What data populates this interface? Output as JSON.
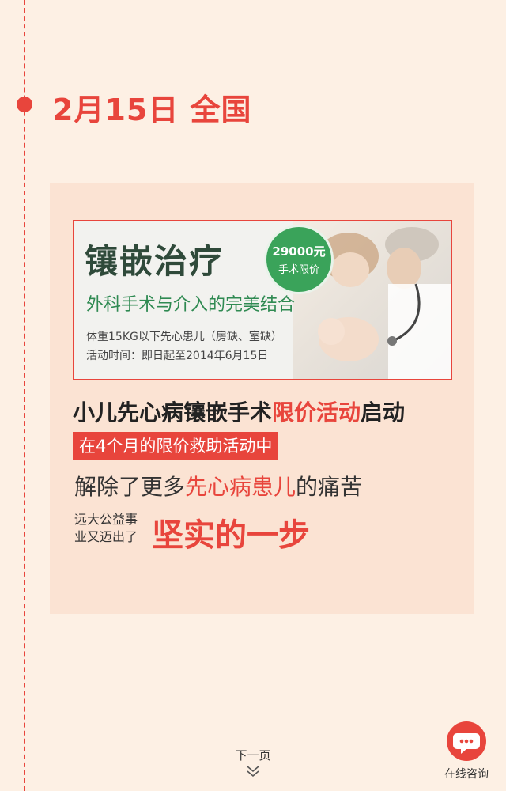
{
  "timeline": {
    "date_heading": "2月15日 全国"
  },
  "banner": {
    "title": "镶嵌治疗",
    "subtitle": "外科手术与介入的完美结合",
    "price": "29000元",
    "price_note": "手术限价",
    "line1": "体重15KG以下先心患儿（房缺、室缺）",
    "line2": "活动时间：即日起至2014年6月15日"
  },
  "headline": {
    "part1": "小儿先心病镶嵌手术",
    "part2": "限价活动",
    "part3": "启动"
  },
  "red_box_text": "在4个月的限价救助活动中",
  "line3": {
    "part1": "解除了更多",
    "part2": "先心病患儿",
    "part3": "的痛苦"
  },
  "small_text": {
    "line1": "远大公益事",
    "line2": "业又迈出了"
  },
  "big_red_text": "坚实的一步",
  "nav": {
    "next_label": "下一页"
  },
  "consult": {
    "label": "在线咨询"
  },
  "colors": {
    "accent": "#e8453c",
    "card": "#fbe3d3",
    "background": "#fdf0e4",
    "badge": "#3aa35a"
  }
}
